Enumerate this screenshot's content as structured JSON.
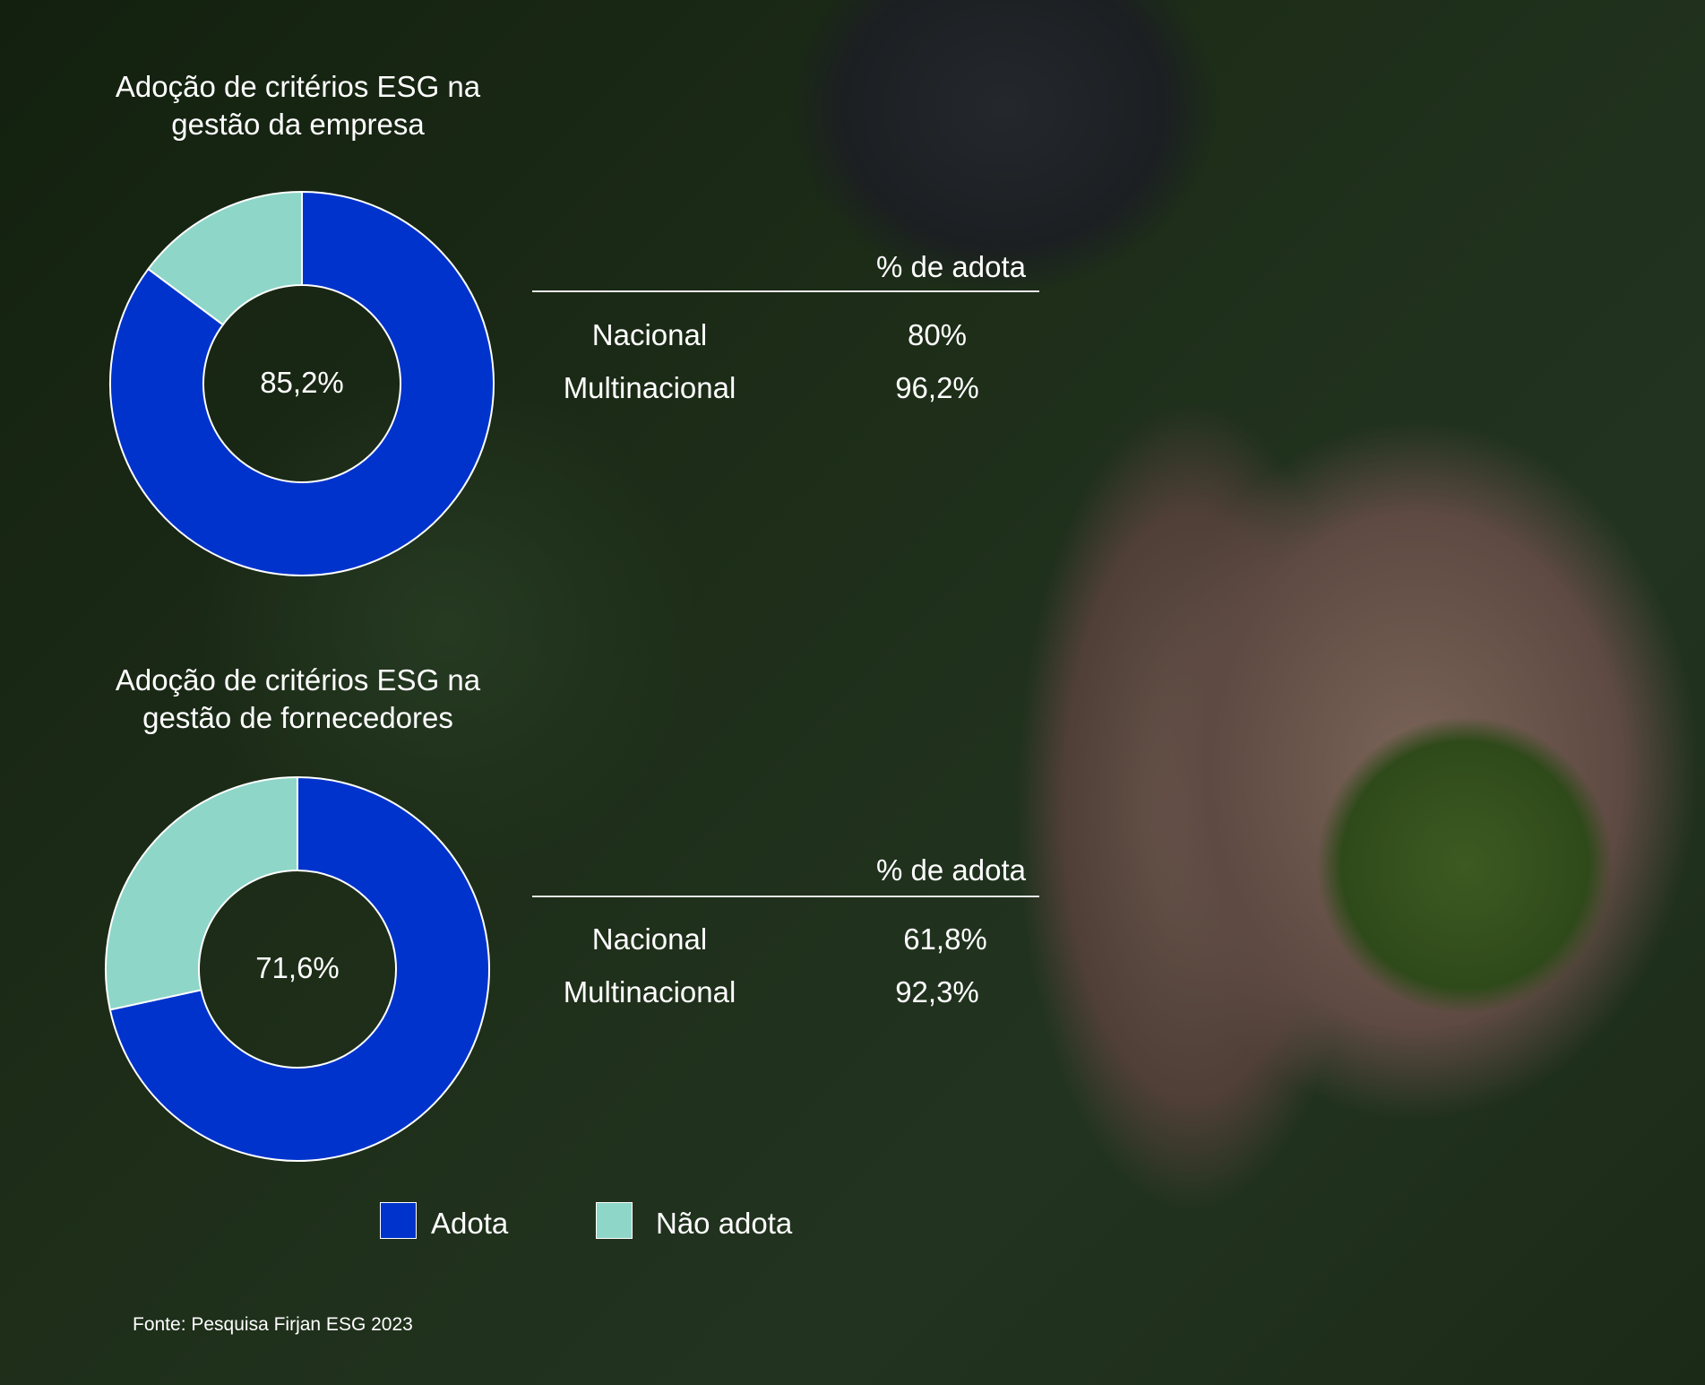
{
  "colors": {
    "adota": "#0033CC",
    "nao_adota": "#8ED6C8"
  },
  "chart_data": [
    {
      "type": "pie",
      "title": "Adoção de critérios ESG na gestão da empresa",
      "categories": [
        "Adota",
        "Não adota"
      ],
      "values": [
        85.2,
        14.8
      ],
      "center_label": "85,2%",
      "table": {
        "header": "% de adota",
        "rows": [
          {
            "label": "Nacional",
            "value": "80%"
          },
          {
            "label": "Multinacional",
            "value": "96,2%"
          }
        ]
      }
    },
    {
      "type": "pie",
      "title": "Adoção de critérios ESG na gestão de fornecedores",
      "categories": [
        "Adota",
        "Não adota"
      ],
      "values": [
        71.6,
        28.4
      ],
      "center_label": "71,6%",
      "table": {
        "header": "% de adota",
        "rows": [
          {
            "label": "Nacional",
            "value": "61,8%"
          },
          {
            "label": "Multinacional",
            "value": "92,3%"
          }
        ]
      }
    }
  ],
  "legend": [
    {
      "label": "Adota"
    },
    {
      "label": "Não adota"
    }
  ],
  "source": "Fonte: Pesquisa Firjan ESG 2023"
}
